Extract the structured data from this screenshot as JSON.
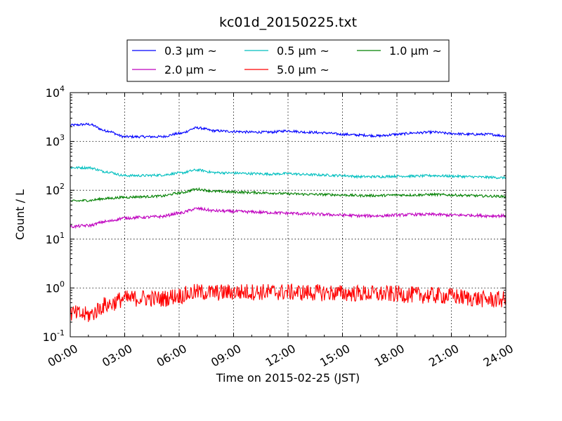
{
  "chart_data": {
    "type": "line",
    "title": "kc01d_20150225.txt",
    "xlabel": "Time on 2015-02-25 (JST)",
    "ylabel": "Count / L",
    "yscale": "log",
    "ylim": [
      0.1,
      10000
    ],
    "xlim": [
      "00:00",
      "24:00"
    ],
    "grid": true,
    "legend_position": "top-center",
    "x_ticks": [
      "00:00",
      "03:00",
      "06:00",
      "09:00",
      "12:00",
      "15:00",
      "18:00",
      "21:00",
      "24:00"
    ],
    "y_ticks": [
      {
        "base": "10",
        "exp": "-1",
        "value": 0.1
      },
      {
        "base": "10",
        "exp": "0",
        "value": 1
      },
      {
        "base": "10",
        "exp": "1",
        "value": 10
      },
      {
        "base": "10",
        "exp": "2",
        "value": 100
      },
      {
        "base": "10",
        "exp": "3",
        "value": 1000
      },
      {
        "base": "10",
        "exp": "4",
        "value": 10000
      }
    ],
    "x_hours": [
      0,
      1,
      2,
      3,
      4,
      5,
      6,
      7,
      8,
      9,
      10,
      11,
      12,
      13,
      14,
      15,
      16,
      17,
      18,
      19,
      20,
      21,
      22,
      23,
      24
    ],
    "series": [
      {
        "name": "0.3 μm ~",
        "color": "#0000ff",
        "noise": 0.05,
        "values": [
          2150,
          2250,
          1650,
          1250,
          1250,
          1250,
          1450,
          1900,
          1650,
          1600,
          1550,
          1550,
          1650,
          1550,
          1500,
          1400,
          1350,
          1300,
          1400,
          1500,
          1550,
          1450,
          1400,
          1400,
          1300
        ]
      },
      {
        "name": "0.5 μm ~",
        "color": "#00bfbf",
        "noise": 0.05,
        "values": [
          290,
          290,
          240,
          200,
          200,
          205,
          225,
          260,
          230,
          225,
          220,
          215,
          220,
          210,
          205,
          200,
          190,
          190,
          195,
          195,
          200,
          195,
          190,
          185,
          180
        ]
      },
      {
        "name": "1.0 μm ~",
        "color": "#008000",
        "noise": 0.05,
        "values": [
          60,
          62,
          68,
          72,
          74,
          76,
          88,
          105,
          95,
          92,
          90,
          88,
          85,
          83,
          82,
          80,
          78,
          78,
          80,
          80,
          82,
          80,
          78,
          76,
          75
        ]
      },
      {
        "name": "2.0 μm ~",
        "color": "#bf00bf",
        "noise": 0.06,
        "values": [
          18,
          19,
          23,
          27,
          28,
          29,
          34,
          42,
          38,
          37,
          36,
          35,
          34,
          33,
          32,
          31,
          30,
          30,
          31,
          32,
          32,
          31,
          31,
          30,
          30
        ]
      },
      {
        "name": "5.0 μm ~",
        "color": "#ff0000",
        "noise": 0.35,
        "values": [
          0.3,
          0.28,
          0.45,
          0.6,
          0.62,
          0.6,
          0.7,
          0.82,
          0.8,
          0.82,
          0.83,
          0.82,
          0.82,
          0.8,
          0.8,
          0.78,
          0.77,
          0.75,
          0.75,
          0.72,
          0.7,
          0.68,
          0.62,
          0.58,
          0.58
        ]
      }
    ]
  }
}
